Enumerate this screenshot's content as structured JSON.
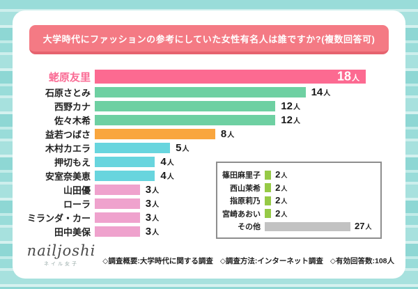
{
  "title": "大学時代にファッションの参考にしていた女性有名人は誰ですか?(複数回答可)",
  "logo": {
    "text": "nailjoshi",
    "subtext": "ネイル女子"
  },
  "footer": {
    "items": [
      "◇調査概要:大学時代に関する調査",
      "◇調査方法:インターネット調査",
      "◇有効回答数:108人"
    ]
  },
  "colors": {
    "banner_bg": "#f47a84",
    "banner_edge": "#e6636f",
    "top_label": "#fa6b94",
    "card_bg": "#ffffff",
    "stripe_teal": "#99dcd9"
  },
  "chart_data": {
    "type": "bar",
    "orientation": "horizontal",
    "unit": "人",
    "max": 18,
    "title": "大学時代にファッションの参考にしていた女性有名人は誰ですか?(複数回答可)",
    "categories": [
      "蛯原友里",
      "石原さとみ",
      "西野カナ",
      "佐々木希",
      "益若つばさ",
      "木村カエラ",
      "押切もえ",
      "安室奈美恵",
      "山田優",
      "ローラ",
      "ミランダ・カー",
      "田中美保"
    ],
    "values": [
      18,
      14,
      12,
      12,
      8,
      5,
      4,
      4,
      3,
      3,
      3,
      3
    ],
    "colors": [
      "#fc6a91",
      "#6ed0a2",
      "#6ed0a2",
      "#6ed0a2",
      "#f9a63e",
      "#68d5de",
      "#68d5de",
      "#68d5de",
      "#efa2cd",
      "#efa2cd",
      "#efa2cd",
      "#efa2cd"
    ],
    "inset": {
      "max": 27,
      "unit": "人",
      "categories": [
        "篠田麻里子",
        "西山茉希",
        "指原莉乃",
        "宮崎あおい",
        "その他"
      ],
      "values": [
        2,
        2,
        2,
        2,
        27
      ],
      "colors": [
        "#96ca46",
        "#96ca46",
        "#96ca46",
        "#96ca46",
        "#c2c2c2"
      ]
    }
  }
}
